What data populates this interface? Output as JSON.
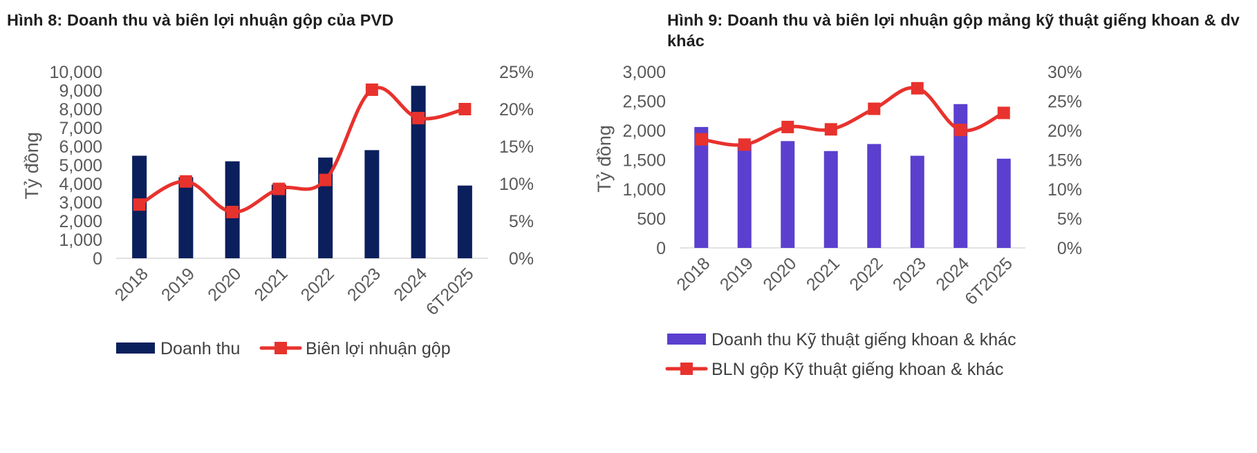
{
  "chart_data": [
    {
      "type": "bar",
      "title": "Hình 8: Doanh thu và biên lợi nhuận gộp của PVD",
      "ylabel": "Tỷ đồng",
      "categories": [
        "2018",
        "2019",
        "2020",
        "2021",
        "2022",
        "2023",
        "2024",
        "6T2025"
      ],
      "ylim": [
        0,
        10000
      ],
      "yticks": [
        "0",
        "1,000",
        "2,000",
        "3,000",
        "4,000",
        "5,000",
        "6,000",
        "7,000",
        "8,000",
        "9,000",
        "10,000"
      ],
      "y2lim": [
        0,
        25
      ],
      "y2ticks": [
        "0%",
        "5%",
        "10%",
        "15%",
        "20%",
        "25%"
      ],
      "legend_position": "bottom",
      "grid": false,
      "series": [
        {
          "name": "Doanh thu",
          "type": "bar",
          "axis": "left",
          "color": "#0a1f5c",
          "values": [
            5500,
            4350,
            5200,
            3950,
            5400,
            5800,
            9250,
            3900
          ]
        },
        {
          "name": "Biên lợi nhuận gộp",
          "type": "line",
          "axis": "right",
          "color": "#e8322d",
          "values": [
            7.2,
            10.3,
            6.2,
            9.3,
            10.5,
            22.6,
            18.8,
            20.0
          ]
        }
      ]
    },
    {
      "type": "bar",
      "title": "Hình 9: Doanh thu và biên lợi nhuận gộp mảng kỹ thuật giếng khoan & dv khác",
      "ylabel": "Tỷ đồng",
      "categories": [
        "2018",
        "2019",
        "2020",
        "2021",
        "2022",
        "2023",
        "2024",
        "6T2025"
      ],
      "ylim": [
        0,
        3000
      ],
      "yticks": [
        "0",
        "500",
        "1,000",
        "1,500",
        "2,000",
        "2,500",
        "3,000"
      ],
      "y2lim": [
        0,
        30
      ],
      "y2ticks": [
        "0%",
        "5%",
        "10%",
        "15%",
        "20%",
        "25%",
        "30%"
      ],
      "legend_position": "bottom",
      "grid": false,
      "series": [
        {
          "name": "Doanh thu Kỹ thuật giếng khoan & khác",
          "type": "bar",
          "axis": "left",
          "color": "#5b3fcf",
          "values": [
            2060,
            1760,
            1820,
            1650,
            1770,
            1570,
            2450,
            1520
          ]
        },
        {
          "name": "BLN gộp Kỹ thuật giếng khoan & khác",
          "type": "line",
          "axis": "right",
          "color": "#e8322d",
          "values": [
            18.5,
            17.6,
            20.6,
            20.2,
            23.7,
            27.2,
            20.1,
            23.0
          ]
        }
      ]
    }
  ]
}
